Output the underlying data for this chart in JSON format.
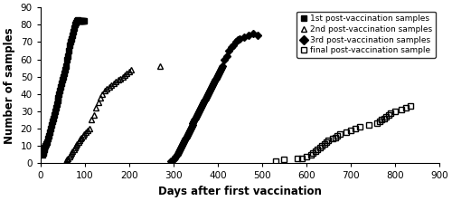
{
  "xlabel": "Days after first vaccination",
  "ylabel": "Number of samples",
  "xlim": [
    0,
    900
  ],
  "ylim": [
    0,
    90
  ],
  "xticks": [
    0,
    100,
    200,
    300,
    400,
    500,
    600,
    700,
    800,
    900
  ],
  "yticks": [
    0,
    10,
    20,
    30,
    40,
    50,
    60,
    70,
    80,
    90
  ],
  "s1_x": [
    5,
    6,
    7,
    8,
    9,
    10,
    12,
    14,
    16,
    18,
    20,
    22,
    24,
    26,
    28,
    30,
    32,
    34,
    36,
    38,
    40,
    42,
    44,
    46,
    48,
    50,
    52,
    54,
    56,
    58,
    60,
    62,
    64,
    66,
    68,
    70,
    72,
    74,
    76,
    78,
    80,
    82,
    84,
    86,
    88,
    90,
    92,
    94,
    96,
    98
  ],
  "s1_y": [
    5,
    6,
    7,
    8,
    9,
    10,
    11,
    12,
    14,
    16,
    18,
    20,
    22,
    24,
    26,
    28,
    30,
    32,
    34,
    36,
    38,
    40,
    42,
    44,
    46,
    48,
    50,
    52,
    54,
    56,
    60,
    62,
    65,
    68,
    70,
    72,
    74,
    76,
    78,
    80,
    81,
    82,
    83,
    82,
    82,
    82,
    82,
    82,
    82,
    82
  ],
  "s2_x": [
    58,
    60,
    62,
    65,
    68,
    70,
    72,
    75,
    78,
    80,
    82,
    85,
    88,
    90,
    93,
    96,
    99,
    102,
    106,
    110,
    115,
    120,
    125,
    130,
    135,
    140,
    145,
    150,
    155,
    160,
    165,
    170,
    175,
    180,
    185,
    190,
    195,
    200,
    205,
    270
  ],
  "s2_y": [
    1,
    2,
    3,
    4,
    5,
    6,
    7,
    8,
    9,
    10,
    11,
    12,
    13,
    14,
    15,
    16,
    17,
    18,
    19,
    20,
    25,
    28,
    32,
    35,
    38,
    40,
    42,
    43,
    44,
    45,
    46,
    47,
    48,
    49,
    50,
    51,
    52,
    53,
    54,
    56
  ],
  "s3_x": [
    295,
    300,
    302,
    305,
    308,
    310,
    312,
    314,
    316,
    318,
    320,
    322,
    324,
    326,
    328,
    330,
    332,
    334,
    336,
    338,
    340,
    342,
    344,
    346,
    348,
    350,
    352,
    354,
    356,
    358,
    360,
    362,
    364,
    366,
    368,
    370,
    372,
    374,
    376,
    378,
    380,
    382,
    384,
    386,
    388,
    390,
    392,
    394,
    396,
    398,
    400,
    402,
    404,
    406,
    408,
    410,
    415,
    420,
    425,
    430,
    435,
    440,
    445,
    450,
    460,
    470,
    480,
    490
  ],
  "s3_y": [
    1,
    2,
    3,
    4,
    5,
    6,
    7,
    8,
    9,
    10,
    11,
    12,
    13,
    14,
    15,
    16,
    17,
    18,
    19,
    20,
    21,
    22,
    23,
    24,
    25,
    26,
    27,
    28,
    29,
    30,
    31,
    32,
    33,
    34,
    35,
    36,
    37,
    38,
    39,
    40,
    41,
    42,
    43,
    44,
    45,
    46,
    47,
    48,
    49,
    50,
    51,
    52,
    53,
    54,
    55,
    56,
    60,
    62,
    65,
    67,
    68,
    70,
    71,
    72,
    73,
    74,
    75,
    74
  ],
  "s3_booster": [
    true,
    true,
    true,
    true,
    true,
    true,
    true,
    true,
    true,
    true,
    true,
    true,
    true,
    true,
    true,
    true,
    true,
    true,
    true,
    true,
    true,
    true,
    true,
    true,
    true,
    true,
    true,
    true,
    true,
    true,
    true,
    true,
    true,
    true,
    true,
    true,
    true,
    true,
    true,
    true,
    true,
    true,
    true,
    true,
    true,
    true,
    true,
    true,
    true,
    true,
    true,
    true,
    false,
    false,
    false,
    false,
    false,
    false,
    false,
    false,
    false,
    false,
    false,
    false,
    false,
    false,
    false,
    false
  ],
  "s4_x": [
    530,
    550,
    580,
    590,
    600,
    610,
    615,
    620,
    625,
    630,
    635,
    640,
    645,
    650,
    660,
    665,
    670,
    675,
    690,
    700,
    710,
    720,
    740,
    760,
    765,
    770,
    775,
    780,
    785,
    790,
    800,
    815,
    825,
    835
  ],
  "s4_y": [
    1,
    2,
    3,
    3,
    4,
    5,
    6,
    7,
    8,
    9,
    10,
    11,
    12,
    13,
    14,
    15,
    16,
    17,
    18,
    19,
    20,
    21,
    22,
    23,
    24,
    25,
    26,
    27,
    28,
    29,
    30,
    31,
    32,
    33
  ],
  "legend_labels": [
    "1st post-vaccination samples",
    "2nd post-vaccination samples",
    "3rd post-vaccination samples",
    "final post-vaccination sample"
  ],
  "marker_size": 4,
  "figsize": [
    5.0,
    2.22
  ],
  "dpi": 100
}
